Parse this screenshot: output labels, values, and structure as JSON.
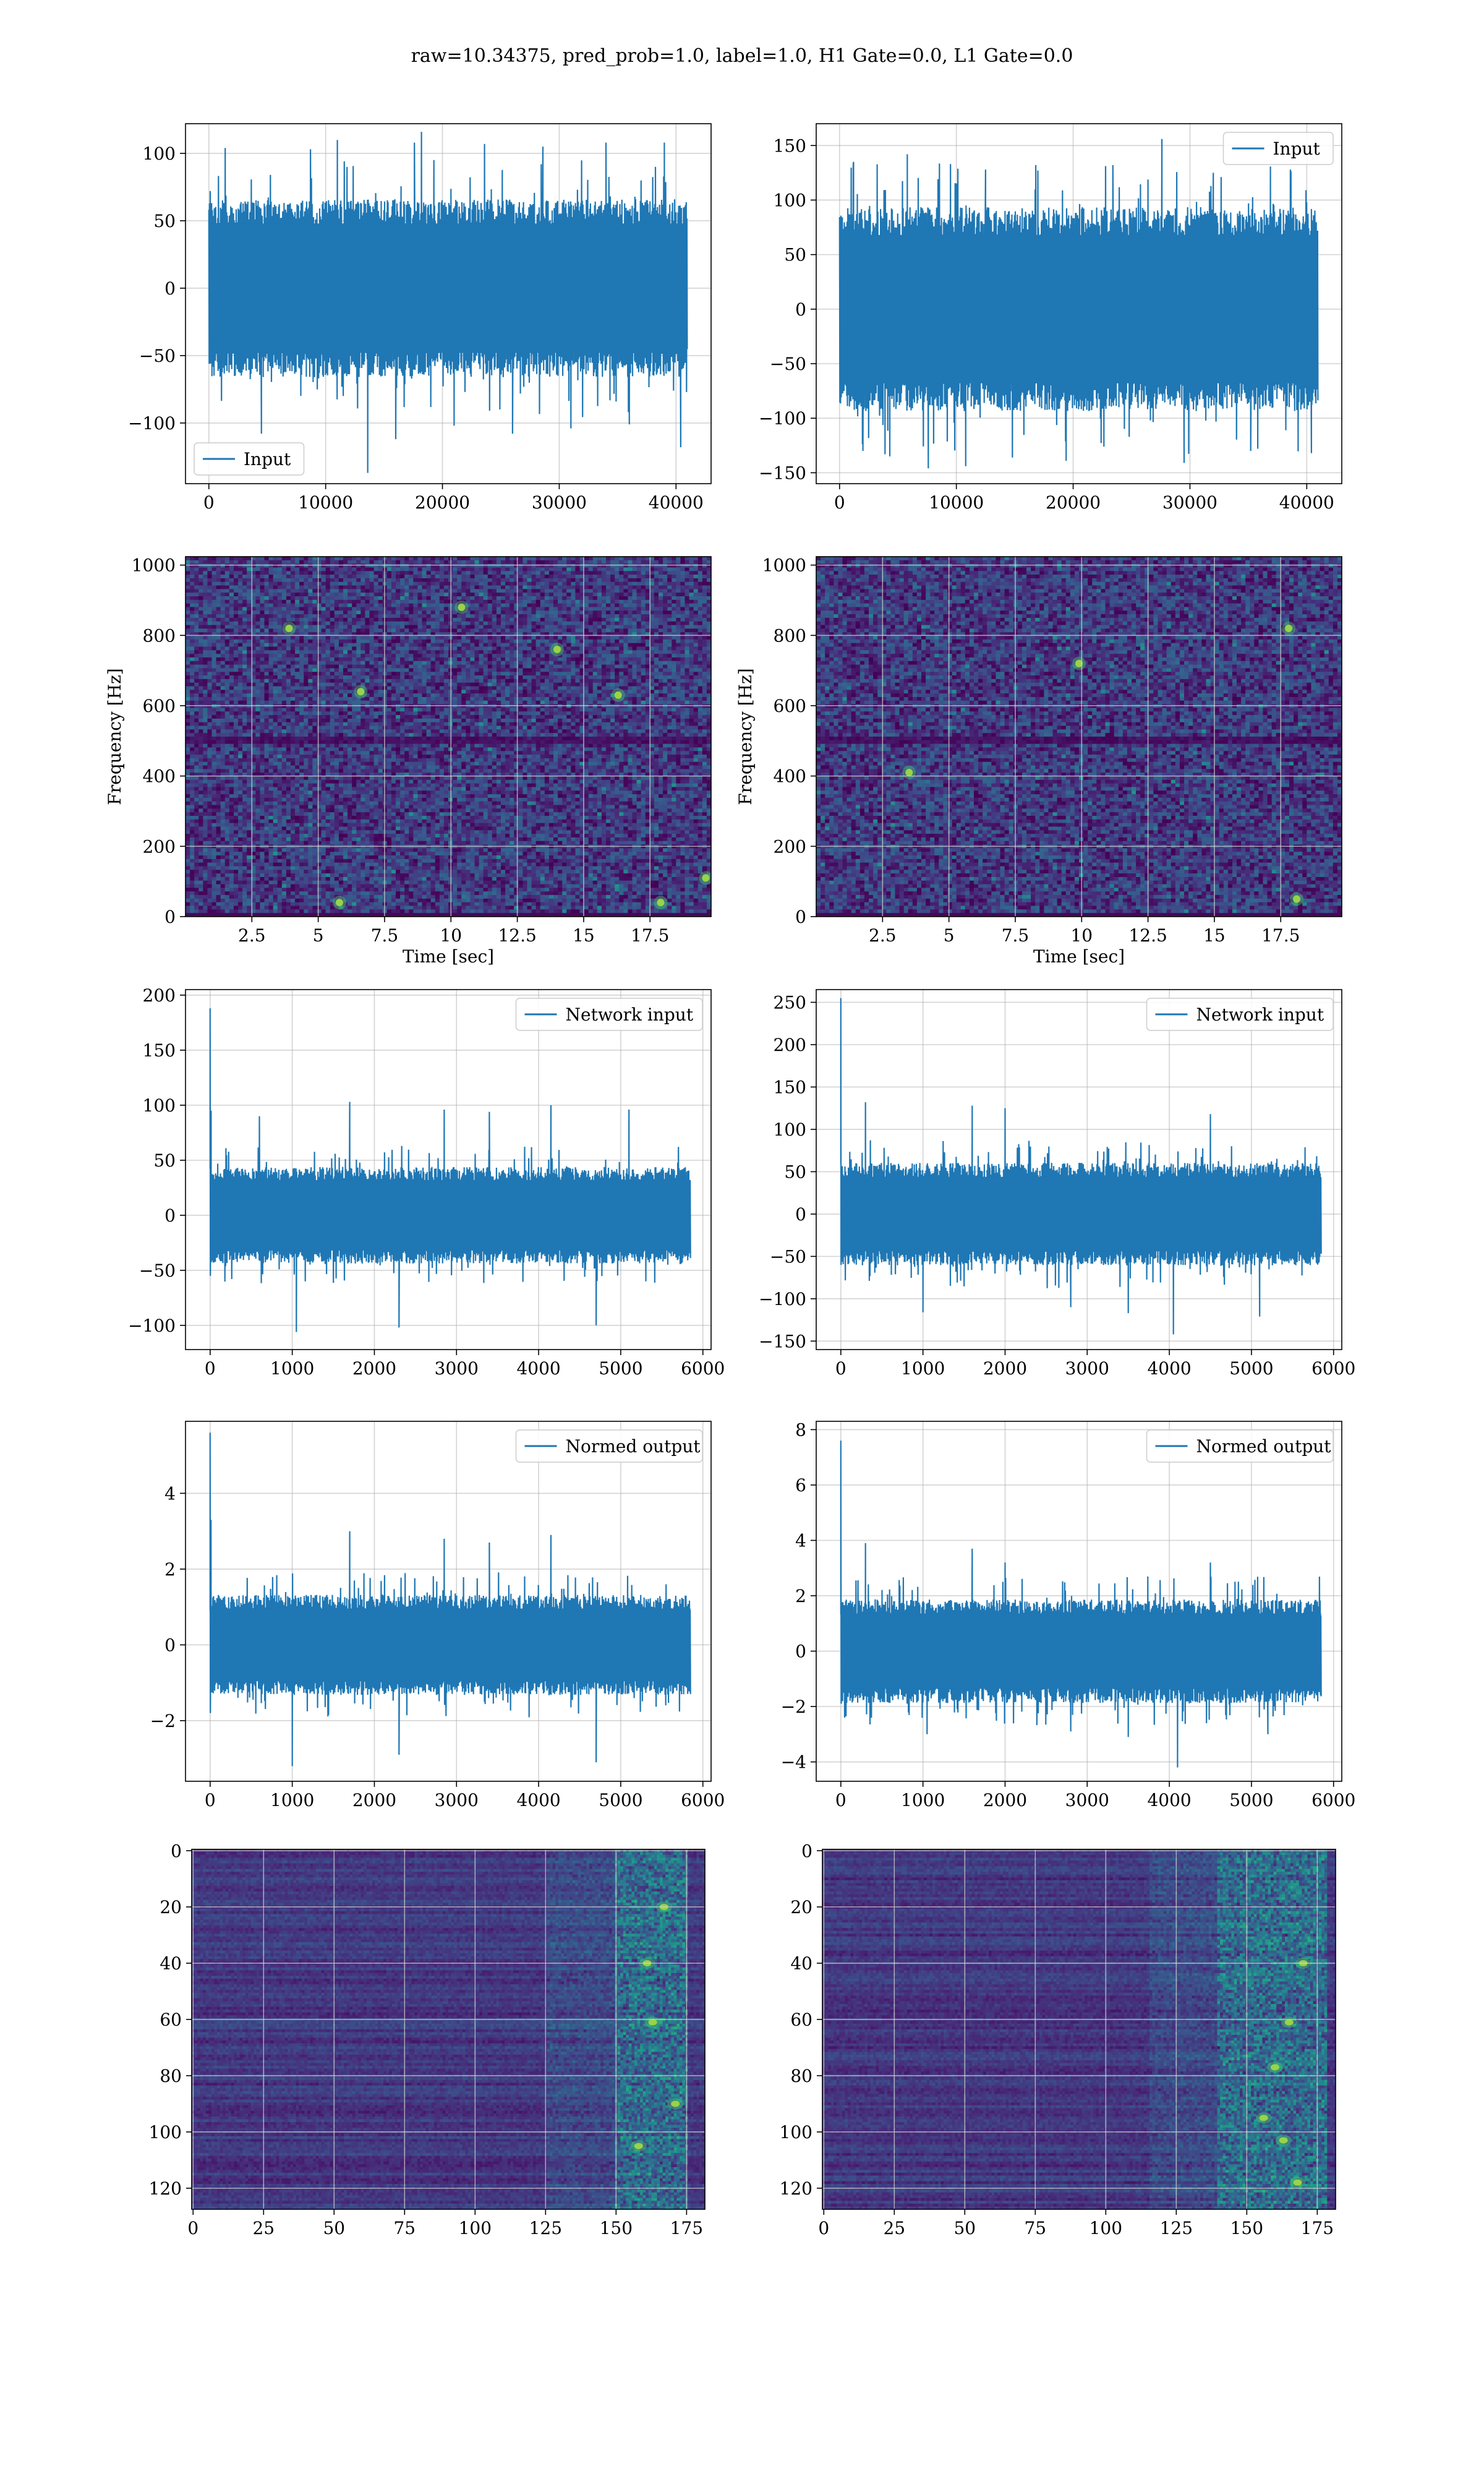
{
  "figure": {
    "suptitle": "raw=10.34375, pred_prob=1.0, label=1.0, H1 Gate=0.0, L1 Gate=0.0",
    "colors": {
      "series": "#1f77b4",
      "grid": "#b0b0b0"
    }
  },
  "chart_data": [
    {
      "id": "input-h1",
      "type": "line",
      "legend": "Input",
      "legend_loc": "lower-left",
      "xlim": [
        -2000,
        43000
      ],
      "ylim": [
        -145,
        122
      ],
      "xticks": [
        0,
        10000,
        20000,
        30000,
        40000
      ],
      "yticks": [
        -100,
        -50,
        0,
        50,
        100
      ],
      "xlabel": "",
      "ylabel": "",
      "grid": true,
      "series": [
        {
          "n": 40960,
          "band": [
            -60,
            60
          ],
          "spikes": [
            [
              1400,
              104
            ],
            [
              4500,
              -108
            ],
            [
              8700,
              103
            ],
            [
              11000,
              110
            ],
            [
              13600,
              -137
            ],
            [
              16000,
              -112
            ],
            [
              17600,
              108
            ],
            [
              18200,
              116
            ],
            [
              21000,
              -102
            ],
            [
              23600,
              107
            ],
            [
              26000,
              -108
            ],
            [
              28600,
              105
            ],
            [
              31000,
              -104
            ],
            [
              34000,
              108
            ],
            [
              36000,
              -101
            ],
            [
              39000,
              108
            ],
            [
              40400,
              -118
            ]
          ]
        }
      ]
    },
    {
      "id": "input-l1",
      "type": "line",
      "legend": "Input",
      "legend_loc": "upper-right",
      "xlim": [
        -2000,
        43000
      ],
      "ylim": [
        -160,
        170
      ],
      "xticks": [
        0,
        10000,
        20000,
        30000,
        40000
      ],
      "yticks": [
        -150,
        -100,
        -50,
        0,
        50,
        100,
        150
      ],
      "xlabel": "",
      "ylabel": "",
      "grid": true,
      "series": [
        {
          "n": 40960,
          "band": [
            -85,
            85
          ],
          "spikes": [
            [
              1200,
              135
            ],
            [
              2000,
              -130
            ],
            [
              4300,
              -135
            ],
            [
              5800,
              142
            ],
            [
              7600,
              -146
            ],
            [
              9500,
              133
            ],
            [
              10800,
              -144
            ],
            [
              12500,
              128
            ],
            [
              14800,
              -136
            ],
            [
              16800,
              132
            ],
            [
              19400,
              -139
            ],
            [
              23400,
              132
            ],
            [
              27600,
              156
            ],
            [
              29500,
              -141
            ],
            [
              32000,
              125
            ],
            [
              35200,
              -130
            ],
            [
              38600,
              128
            ],
            [
              40400,
              -132
            ]
          ]
        }
      ]
    },
    {
      "id": "spectrogram-h1",
      "type": "heatmap",
      "xlim": [
        0,
        19.8
      ],
      "ylim": [
        0,
        1024
      ],
      "xticks": [
        2.5,
        5.0,
        7.5,
        10.0,
        12.5,
        15.0,
        17.5
      ],
      "yticks": [
        0,
        200,
        400,
        600,
        800,
        1000
      ],
      "xlabel": "Time [sec]",
      "ylabel": "Frequency [Hz]",
      "grid": true,
      "colormap": "viridis",
      "dark_band_hz": [
        490,
        510
      ],
      "hot_spots": [
        [
          14.0,
          760
        ],
        [
          5.8,
          40
        ],
        [
          17.9,
          40
        ],
        [
          19.6,
          110
        ],
        [
          10.4,
          880
        ],
        [
          6.6,
          640
        ],
        [
          3.9,
          820
        ],
        [
          16.3,
          630
        ]
      ]
    },
    {
      "id": "spectrogram-l1",
      "type": "heatmap",
      "xlim": [
        0,
        19.8
      ],
      "ylim": [
        0,
        1024
      ],
      "xticks": [
        2.5,
        5.0,
        7.5,
        10.0,
        12.5,
        15.0,
        17.5
      ],
      "yticks": [
        0,
        200,
        400,
        600,
        800,
        1000
      ],
      "xlabel": "Time [sec]",
      "ylabel": "Frequency [Hz]",
      "grid": true,
      "colormap": "viridis",
      "dark_band_hz": [
        490,
        510
      ],
      "hot_spots": [
        [
          18.1,
          50
        ],
        [
          17.8,
          820
        ],
        [
          9.9,
          720
        ],
        [
          3.5,
          410
        ]
      ]
    },
    {
      "id": "network-input-h1",
      "type": "line",
      "legend": "Network input",
      "legend_loc": "upper-right",
      "xlim": [
        -300,
        6100
      ],
      "ylim": [
        -122,
        205
      ],
      "xticks": [
        0,
        1000,
        2000,
        3000,
        4000,
        5000,
        6000
      ],
      "yticks": [
        -100,
        -50,
        0,
        50,
        100,
        150,
        200
      ],
      "xlabel": "",
      "ylabel": "",
      "grid": true,
      "series": [
        {
          "n": 5850,
          "band": [
            -40,
            40
          ],
          "spikes": [
            [
              0,
              188
            ],
            [
              3,
              -55
            ],
            [
              12,
              95
            ],
            [
              600,
              90
            ],
            [
              1050,
              -106
            ],
            [
              1700,
              103
            ],
            [
              2300,
              -102
            ],
            [
              2850,
              96
            ],
            [
              3400,
              94
            ],
            [
              4150,
              100
            ],
            [
              4700,
              -100
            ],
            [
              5100,
              96
            ]
          ]
        }
      ]
    },
    {
      "id": "network-input-l1",
      "type": "line",
      "legend": "Network input",
      "legend_loc": "upper-right",
      "xlim": [
        -300,
        6100
      ],
      "ylim": [
        -160,
        265
      ],
      "xticks": [
        0,
        1000,
        2000,
        3000,
        4000,
        5000,
        6000
      ],
      "yticks": [
        -150,
        -100,
        -50,
        0,
        50,
        100,
        150,
        200,
        250
      ],
      "xlabel": "",
      "ylabel": "",
      "grid": true,
      "series": [
        {
          "n": 5850,
          "band": [
            -55,
            55
          ],
          "spikes": [
            [
              0,
              255
            ],
            [
              3,
              -60
            ],
            [
              300,
              132
            ],
            [
              1000,
              -116
            ],
            [
              1600,
              128
            ],
            [
              2000,
              125
            ],
            [
              2800,
              -110
            ],
            [
              3500,
              -117
            ],
            [
              4050,
              -142
            ],
            [
              4500,
              118
            ],
            [
              5100,
              -121
            ]
          ]
        }
      ]
    },
    {
      "id": "normed-output-h1",
      "type": "line",
      "legend": "Normed output",
      "legend_loc": "upper-right",
      "xlim": [
        -300,
        6100
      ],
      "ylim": [
        -3.6,
        5.9
      ],
      "xticks": [
        0,
        1000,
        2000,
        3000,
        4000,
        5000,
        6000
      ],
      "yticks": [
        -2,
        0,
        2,
        4
      ],
      "xlabel": "",
      "ylabel": "",
      "grid": true,
      "series": [
        {
          "n": 5850,
          "band": [
            -1.2,
            1.2
          ],
          "spikes": [
            [
              0,
              5.6
            ],
            [
              3,
              -1.8
            ],
            [
              10,
              3.3
            ],
            [
              1000,
              -3.2
            ],
            [
              1700,
              3.0
            ],
            [
              2300,
              -2.9
            ],
            [
              2850,
              2.8
            ],
            [
              3400,
              2.7
            ],
            [
              4150,
              2.9
            ],
            [
              4700,
              -3.1
            ]
          ]
        }
      ]
    },
    {
      "id": "normed-output-l1",
      "type": "line",
      "legend": "Normed output",
      "legend_loc": "upper-right",
      "xlim": [
        -300,
        6100
      ],
      "ylim": [
        -4.7,
        8.3
      ],
      "xticks": [
        0,
        1000,
        2000,
        3000,
        4000,
        5000,
        6000
      ],
      "yticks": [
        -4,
        -2,
        0,
        2,
        4,
        6,
        8
      ],
      "xlabel": "",
      "ylabel": "",
      "grid": true,
      "series": [
        {
          "n": 5850,
          "band": [
            -1.7,
            1.7
          ],
          "spikes": [
            [
              0,
              7.6
            ],
            [
              5,
              -1.9
            ],
            [
              300,
              3.9
            ],
            [
              1050,
              -3.0
            ],
            [
              1600,
              3.7
            ],
            [
              2000,
              3.2
            ],
            [
              2800,
              -2.9
            ],
            [
              3500,
              -3.1
            ],
            [
              4100,
              -4.2
            ],
            [
              4500,
              3.2
            ],
            [
              5200,
              -3.0
            ]
          ]
        }
      ]
    },
    {
      "id": "feature-map-h1",
      "type": "heatmap",
      "xlim": [
        -0.5,
        181.5
      ],
      "ylim": [
        127.5,
        -0.5
      ],
      "xticks": [
        0,
        25,
        50,
        75,
        100,
        125,
        150,
        175
      ],
      "yticks": [
        0,
        20,
        40,
        60,
        80,
        100,
        120
      ],
      "xlabel": "",
      "ylabel": "",
      "grid": true,
      "colormap": "viridis",
      "hot_band": [
        150,
        175
      ],
      "hot_spots": [
        [
          163,
          61
        ],
        [
          161,
          40
        ],
        [
          167,
          20
        ],
        [
          158,
          105
        ],
        [
          171,
          90
        ]
      ]
    },
    {
      "id": "feature-map-l1",
      "type": "heatmap",
      "xlim": [
        -0.5,
        181.5
      ],
      "ylim": [
        127.5,
        -0.5
      ],
      "xticks": [
        0,
        25,
        50,
        75,
        100,
        125,
        150,
        175
      ],
      "yticks": [
        0,
        20,
        40,
        60,
        80,
        100,
        120
      ],
      "xlabel": "",
      "ylabel": "",
      "grid": true,
      "colormap": "viridis",
      "hot_band": [
        140,
        178
      ],
      "hot_spots": [
        [
          165,
          61
        ],
        [
          163,
          103
        ],
        [
          168,
          118
        ],
        [
          156,
          95
        ],
        [
          170,
          40
        ],
        [
          160,
          77
        ]
      ]
    }
  ]
}
